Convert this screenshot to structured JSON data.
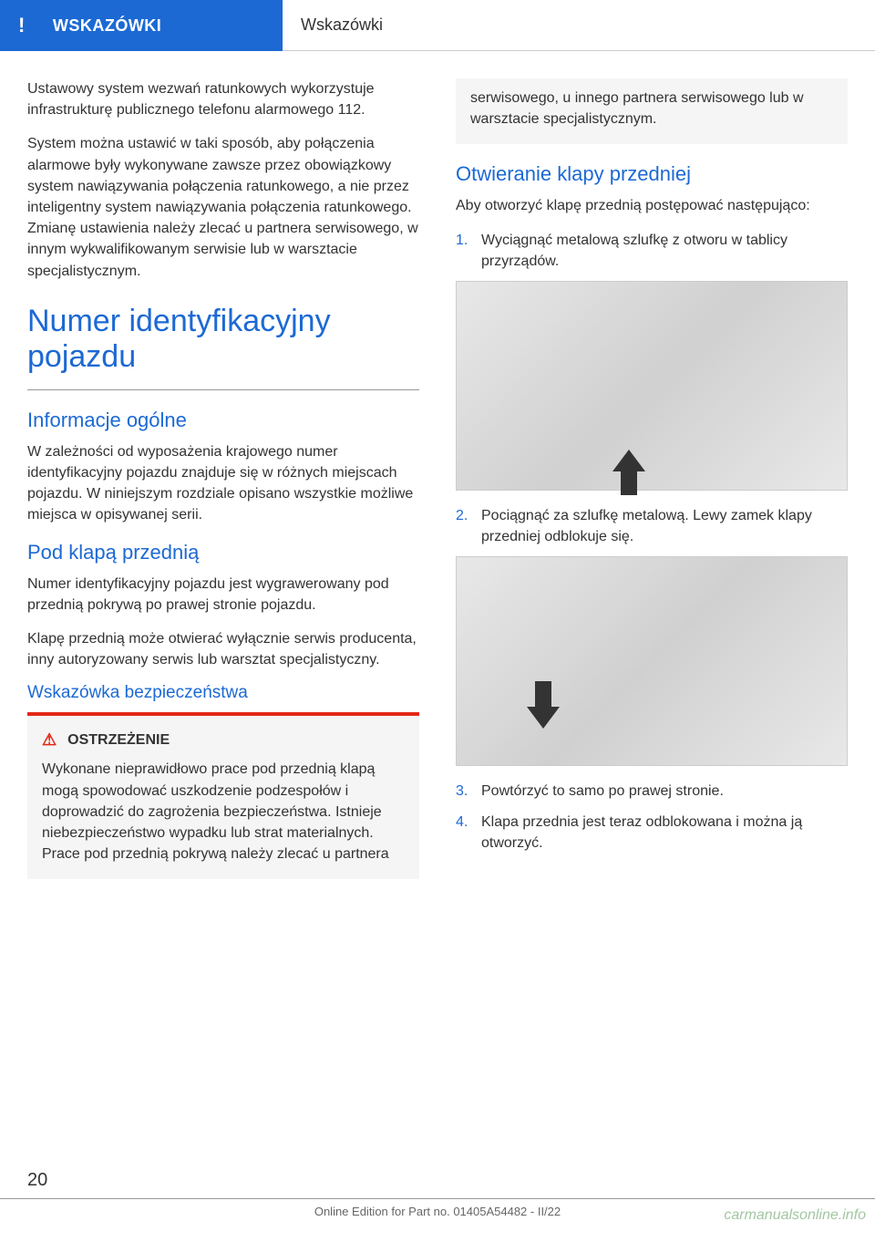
{
  "header": {
    "category": "WSKAZÓWKI",
    "title": "Wskazówki",
    "exclaim": "!"
  },
  "leftCol": {
    "p1": "Ustawowy system wezwań ratunkowych wykorzystuje infrastrukturę publicznego telefonu alarmowego 112.",
    "p2": "System można ustawić w taki sposób, aby połączenia alarmowe były wykonywane zawsze przez obowiązkowy system nawiązywania połączenia ratunkowego, a nie przez inteligentny system nawiązywania połączenia ratunkowego. Zmianę ustawienia należy zlecać u partnera serwisowego, w innym wykwalifikowanym serwisie lub w warsztacie specjalistycznym.",
    "h1": "Numer identyfikacyjny pojazdu",
    "h2a": "Informacje ogólne",
    "p3": "W zależności od wyposażenia krajowego numer identyfikacyjny pojazdu znajduje się w różnych miejscach pojazdu. W niniejszym rozdziale opisano wszystkie możliwe miejsca w opisywanej serii.",
    "h2b": "Pod klapą przednią",
    "p4": "Numer identyfikacyjny pojazdu jest wygrawerowany pod przednią pokrywą po prawej stronie pojazdu.",
    "p5": "Klapę przednią może otwierać wyłącznie serwis producenta, inny autoryzowany serwis lub warsztat specjalistyczny.",
    "h3": "Wskazówka bezpieczeństwa",
    "warningLabel": "OSTRZEŻENIE",
    "warningText": "Wykonane nieprawidłowo prace pod przednią klapą mogą spowodować uszkodzenie podzespołów i doprowadzić do zagrożenia bezpieczeństwa. Istnieje niebezpieczeństwo wypadku lub strat materialnych. Prace pod przednią pokrywą należy zlecać u partnera"
  },
  "rightCol": {
    "warningCont": "serwisowego, u innego partnera serwisowego lub w warsztacie specjalistycznym.",
    "h2": "Otwieranie klapy przedniej",
    "p1": "Aby otworzyć klapę przednią postępować następująco:",
    "steps": [
      {
        "num": "1.",
        "text": "Wyciągnąć metalową szlufkę z otworu w tablicy przyrządów."
      },
      {
        "num": "2.",
        "text": "Pociągnąć za szlufkę metalową. Lewy zamek klapy przedniej odblokuje się."
      },
      {
        "num": "3.",
        "text": "Powtórzyć to samo po prawej stronie."
      },
      {
        "num": "4.",
        "text": "Klapa przednia jest teraz odblokowana i można ją otworzyć."
      }
    ]
  },
  "pageNumber": "20",
  "footer": "Online Edition for Part no. 01405A54482 - II/22",
  "watermark": "carmanualsonline.info"
}
